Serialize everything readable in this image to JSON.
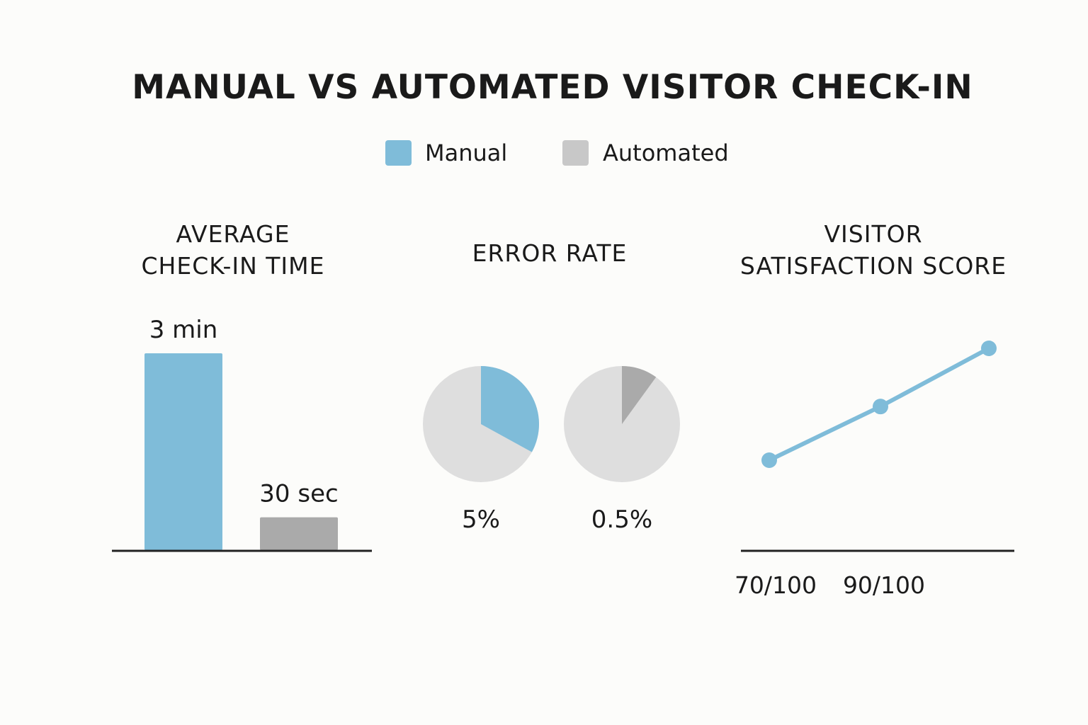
{
  "title": "MANUAL VS AUTOMATED VISITOR CHECK-IN",
  "colors": {
    "manual": "#7fbcd9",
    "automated": "#aaaaaa",
    "legend_automated": "#c8c8c8",
    "pie_base": "#dedede",
    "axis": "#222222"
  },
  "legend": [
    {
      "label": "Manual",
      "color_key": "manual"
    },
    {
      "label": "Automated",
      "color_key": "automated"
    }
  ],
  "chart_data": [
    {
      "type": "bar",
      "title_lines": [
        "AVERAGE",
        "CHECK-IN TIME"
      ],
      "categories": [
        "Manual",
        "Automated"
      ],
      "values": [
        180,
        30
      ],
      "unit": "seconds",
      "data_labels": [
        "3 min",
        "30 sec"
      ],
      "ylim": [
        0,
        200
      ]
    },
    {
      "type": "pie",
      "title_lines": [
        "ERROR RATE"
      ],
      "series": [
        {
          "name": "Manual",
          "value": 5,
          "label": "5%",
          "slice_fraction": 0.33
        },
        {
          "name": "Automated",
          "value": 0.5,
          "label": "0.5%",
          "slice_fraction": 0.1
        }
      ]
    },
    {
      "type": "line",
      "title_lines": [
        "VISITOR",
        "SATISFACTION SCORE"
      ],
      "x": [
        0,
        1,
        2
      ],
      "values": [
        70,
        82,
        95
      ],
      "ylim": [
        50,
        100
      ],
      "tick_labels": [
        "70/100",
        "90/100"
      ]
    }
  ]
}
